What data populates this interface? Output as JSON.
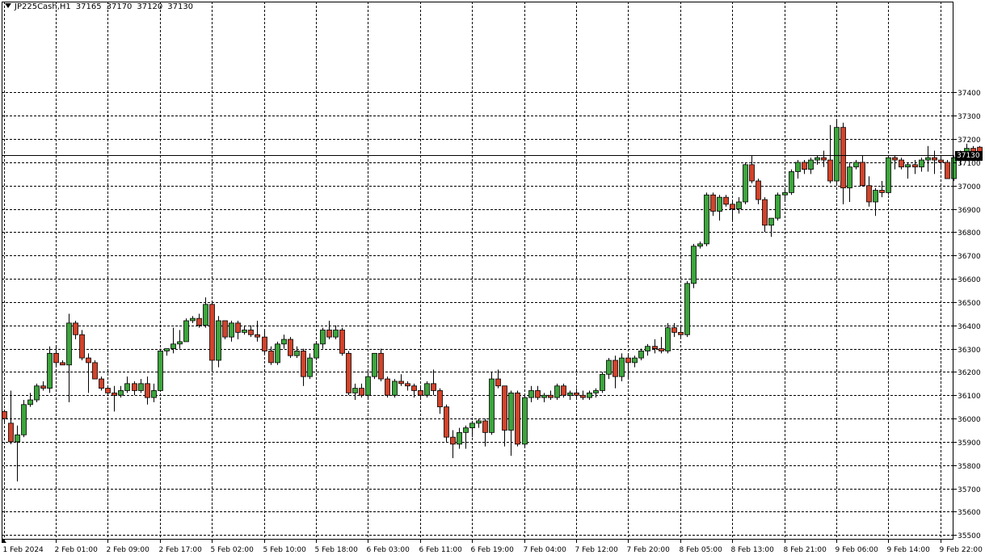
{
  "header": {
    "symbol": "JP225Cash,H1",
    "open": "37165",
    "high": "37170",
    "low": "37120",
    "close": "37130"
  },
  "colors": {
    "bull": "#3ca53c",
    "bear": "#d2432b",
    "grid": "#000000",
    "background": "#ffffff"
  },
  "chart_data": {
    "type": "candlestick",
    "timeframe": "H1",
    "current_price": 37130,
    "current_price_label": "37130",
    "ylim": [
      35480,
      37790
    ],
    "yticks": [
      37400,
      37300,
      37200,
      37100,
      37000,
      36900,
      36800,
      36700,
      36600,
      36500,
      36400,
      36300,
      36200,
      36100,
      36000,
      35900,
      35800,
      35700,
      35600,
      35500
    ],
    "ytick_labels": [
      "37400",
      "37300",
      "37200",
      "37100",
      "37000",
      "36900",
      "36800",
      "36700",
      "36600",
      "36500",
      "36400",
      "36300",
      "36200",
      "36100",
      "36000",
      "35900",
      "35800",
      "35700",
      "35600",
      "35500"
    ],
    "xtick_labels": [
      "1 Feb 2024",
      "2 Feb 01:00",
      "2 Feb 09:00",
      "2 Feb 17:00",
      "5 Feb 02:00",
      "5 Feb 10:00",
      "5 Feb 18:00",
      "6 Feb 03:00",
      "6 Feb 11:00",
      "6 Feb 19:00",
      "7 Feb 04:00",
      "7 Feb 12:00",
      "7 Feb 20:00",
      "8 Feb 05:00",
      "8 Feb 13:00",
      "8 Feb 21:00",
      "9 Feb 06:00",
      "9 Feb 14:00",
      "9 Feb 22:00"
    ],
    "xtick_every": 8,
    "grid": true,
    "ohlc": [
      [
        36030,
        36030,
        35980,
        36000
      ],
      [
        35980,
        36120,
        35890,
        35900
      ],
      [
        35900,
        35970,
        35730,
        35930
      ],
      [
        35930,
        36080,
        35920,
        36060
      ],
      [
        36060,
        36110,
        36050,
        36080
      ],
      [
        36080,
        36150,
        36070,
        36140
      ],
      [
        36140,
        36160,
        36120,
        36130
      ],
      [
        36130,
        36310,
        36110,
        36280
      ],
      [
        36280,
        36310,
        36220,
        36240
      ],
      [
        36240,
        36250,
        36230,
        36230
      ],
      [
        36230,
        36450,
        36070,
        36410
      ],
      [
        36410,
        36420,
        36340,
        36360
      ],
      [
        36360,
        36380,
        36250,
        36260
      ],
      [
        36260,
        36280,
        36110,
        36240
      ],
      [
        36240,
        36250,
        36170,
        36170
      ],
      [
        36170,
        36180,
        36120,
        36130
      ],
      [
        36130,
        36140,
        36100,
        36110
      ],
      [
        36110,
        36140,
        36030,
        36100
      ],
      [
        36100,
        36140,
        36090,
        36120
      ],
      [
        36120,
        36180,
        36110,
        36150
      ],
      [
        36150,
        36160,
        36100,
        36120
      ],
      [
        36120,
        36170,
        36110,
        36150
      ],
      [
        36150,
        36180,
        36060,
        36090
      ],
      [
        36090,
        36150,
        36070,
        36120
      ],
      [
        36120,
        36300,
        36120,
        36290
      ],
      [
        36290,
        36300,
        36270,
        36300
      ],
      [
        36300,
        36390,
        36280,
        36320
      ],
      [
        36320,
        36380,
        36300,
        36330
      ],
      [
        36330,
        36430,
        36330,
        36420
      ],
      [
        36420,
        36440,
        36410,
        36430
      ],
      [
        36430,
        36450,
        36390,
        36400
      ],
      [
        36400,
        36520,
        36390,
        36490
      ],
      [
        36490,
        36500,
        36210,
        36250
      ],
      [
        36250,
        36440,
        36220,
        36420
      ],
      [
        36420,
        36420,
        36340,
        36350
      ],
      [
        36350,
        36420,
        36330,
        36410
      ],
      [
        36410,
        36420,
        36340,
        36370
      ],
      [
        36370,
        36400,
        36360,
        36380
      ],
      [
        36380,
        36400,
        36350,
        36360
      ],
      [
        36360,
        36420,
        36330,
        36350
      ],
      [
        36350,
        36380,
        36280,
        36290
      ],
      [
        36290,
        36310,
        36230,
        36240
      ],
      [
        36240,
        36330,
        36230,
        36320
      ],
      [
        36320,
        36360,
        36300,
        36340
      ],
      [
        36340,
        36350,
        36260,
        36270
      ],
      [
        36270,
        36310,
        36260,
        36290
      ],
      [
        36290,
        36300,
        36140,
        36180
      ],
      [
        36180,
        36280,
        36170,
        36260
      ],
      [
        36260,
        36330,
        36250,
        36320
      ],
      [
        36320,
        36390,
        36300,
        36380
      ],
      [
        36380,
        36420,
        36340,
        36350
      ],
      [
        36350,
        36400,
        36340,
        36380
      ],
      [
        36380,
        36390,
        36270,
        36280
      ],
      [
        36280,
        36290,
        36100,
        36110
      ],
      [
        36110,
        36150,
        36080,
        36130
      ],
      [
        36130,
        36150,
        36090,
        36100
      ],
      [
        36100,
        36200,
        36090,
        36180
      ],
      [
        36180,
        36280,
        36170,
        36280
      ],
      [
        36280,
        36300,
        36160,
        36170
      ],
      [
        36170,
        36180,
        36090,
        36100
      ],
      [
        36100,
        36170,
        36090,
        36160
      ],
      [
        36160,
        36190,
        36140,
        36150
      ],
      [
        36150,
        36160,
        36120,
        36140
      ],
      [
        36140,
        36150,
        36090,
        36120
      ],
      [
        36120,
        36140,
        36080,
        36100
      ],
      [
        36100,
        36160,
        36090,
        36150
      ],
      [
        36150,
        36210,
        36100,
        36120
      ],
      [
        36120,
        36130,
        36020,
        36050
      ],
      [
        36050,
        36060,
        35900,
        35920
      ],
      [
        35920,
        35950,
        35830,
        35890
      ],
      [
        35890,
        35960,
        35870,
        35940
      ],
      [
        35940,
        35970,
        35870,
        35960
      ],
      [
        35960,
        35990,
        35920,
        35980
      ],
      [
        35980,
        36000,
        35960,
        35990
      ],
      [
        35990,
        36000,
        35880,
        35940
      ],
      [
        35940,
        36200,
        35930,
        36170
      ],
      [
        36170,
        36210,
        36130,
        36140
      ],
      [
        36140,
        36140,
        35880,
        35950
      ],
      [
        35950,
        36120,
        35840,
        36110
      ],
      [
        36110,
        36120,
        35880,
        35890
      ],
      [
        35890,
        36100,
        35880,
        36090
      ],
      [
        36090,
        36140,
        36070,
        36120
      ],
      [
        36120,
        36140,
        36080,
        36090
      ],
      [
        36090,
        36110,
        36070,
        36100
      ],
      [
        36100,
        36120,
        36080,
        36090
      ],
      [
        36090,
        36150,
        36080,
        36140
      ],
      [
        36140,
        36150,
        36090,
        36100
      ],
      [
        36100,
        36120,
        36080,
        36110
      ],
      [
        36110,
        36130,
        36080,
        36100
      ],
      [
        36100,
        36120,
        36080,
        36090
      ],
      [
        36090,
        36120,
        36080,
        36110
      ],
      [
        36110,
        36130,
        36090,
        36120
      ],
      [
        36120,
        36200,
        36110,
        36190
      ],
      [
        36190,
        36260,
        36170,
        36250
      ],
      [
        36250,
        36270,
        36130,
        36180
      ],
      [
        36180,
        36280,
        36160,
        36260
      ],
      [
        36260,
        36280,
        36170,
        36240
      ],
      [
        36240,
        36270,
        36220,
        36260
      ],
      [
        36260,
        36300,
        36250,
        36290
      ],
      [
        36290,
        36320,
        36270,
        36310
      ],
      [
        36310,
        36340,
        36280,
        36300
      ],
      [
        36300,
        36350,
        36280,
        36290
      ],
      [
        36290,
        36410,
        36280,
        36390
      ],
      [
        36390,
        36410,
        36350,
        36370
      ],
      [
        36370,
        36400,
        36340,
        36360
      ],
      [
        36360,
        36590,
        36350,
        36580
      ],
      [
        36580,
        36750,
        36560,
        36740
      ],
      [
        36740,
        36760,
        36730,
        36750
      ],
      [
        36750,
        36970,
        36740,
        36960
      ],
      [
        36960,
        36970,
        36870,
        36890
      ],
      [
        36890,
        36960,
        36850,
        36950
      ],
      [
        36950,
        36960,
        36910,
        36920
      ],
      [
        36920,
        36940,
        36850,
        36900
      ],
      [
        36900,
        36950,
        36880,
        36930
      ],
      [
        36930,
        37100,
        36920,
        37090
      ],
      [
        37090,
        37130,
        37010,
        37020
      ],
      [
        37020,
        37030,
        36920,
        36940
      ],
      [
        36940,
        36950,
        36800,
        36830
      ],
      [
        36830,
        36860,
        36780,
        36860
      ],
      [
        36860,
        36970,
        36850,
        36960
      ],
      [
        36960,
        36990,
        36940,
        36970
      ],
      [
        36970,
        37070,
        36960,
        37060
      ],
      [
        37060,
        37110,
        37030,
        37100
      ],
      [
        37100,
        37110,
        37050,
        37070
      ],
      [
        37070,
        37120,
        37050,
        37110
      ],
      [
        37110,
        37130,
        37090,
        37120
      ],
      [
        37120,
        37150,
        37080,
        37110
      ],
      [
        37110,
        37260,
        37010,
        37020
      ],
      [
        37020,
        37280,
        37010,
        37250
      ],
      [
        37250,
        37270,
        36920,
        36990
      ],
      [
        36990,
        37100,
        36930,
        37080
      ],
      [
        37080,
        37110,
        37070,
        37100
      ],
      [
        37100,
        37130,
        37010,
        37000
      ],
      [
        37000,
        37040,
        36910,
        36930
      ],
      [
        36930,
        36990,
        36870,
        36980
      ],
      [
        36980,
        37020,
        36950,
        36970
      ],
      [
        36970,
        37130,
        36960,
        37120
      ],
      [
        37120,
        37130,
        37070,
        37110
      ],
      [
        37110,
        37120,
        37070,
        37080
      ],
      [
        37080,
        37100,
        37030,
        37090
      ],
      [
        37090,
        37110,
        37050,
        37080
      ],
      [
        37080,
        37120,
        37060,
        37110
      ],
      [
        37110,
        37170,
        37060,
        37120
      ],
      [
        37120,
        37150,
        37050,
        37110
      ],
      [
        37110,
        37130,
        37070,
        37100
      ],
      [
        37100,
        37110,
        37030,
        37030
      ],
      [
        37030,
        37130,
        37020,
        37120
      ],
      [
        37120,
        37150,
        37090,
        37140
      ],
      [
        37140,
        37180,
        37130,
        37160
      ],
      [
        37160,
        37170,
        37120,
        37140
      ],
      [
        37165,
        37170,
        37120,
        37130
      ]
    ]
  }
}
